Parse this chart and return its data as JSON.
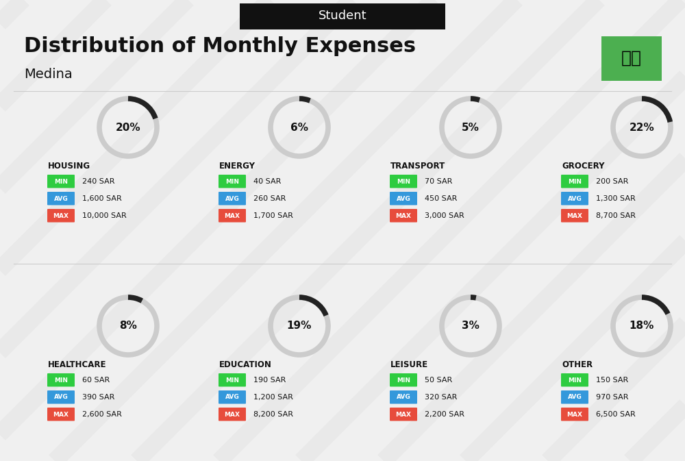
{
  "title": "Distribution of Monthly Expenses",
  "subtitle": "Student",
  "location": "Medina",
  "bg_color": "#f0f0f0",
  "title_color": "#111111",
  "categories": [
    {
      "name": "HOUSING",
      "pct": 20,
      "min_val": "240 SAR",
      "avg_val": "1,600 SAR",
      "max_val": "10,000 SAR",
      "col": 0,
      "row": 0
    },
    {
      "name": "ENERGY",
      "pct": 6,
      "min_val": "40 SAR",
      "avg_val": "260 SAR",
      "max_val": "1,700 SAR",
      "col": 1,
      "row": 0
    },
    {
      "name": "TRANSPORT",
      "pct": 5,
      "min_val": "70 SAR",
      "avg_val": "450 SAR",
      "max_val": "3,000 SAR",
      "col": 2,
      "row": 0
    },
    {
      "name": "GROCERY",
      "pct": 22,
      "min_val": "200 SAR",
      "avg_val": "1,300 SAR",
      "max_val": "8,700 SAR",
      "col": 3,
      "row": 0
    },
    {
      "name": "HEALTHCARE",
      "pct": 8,
      "min_val": "60 SAR",
      "avg_val": "390 SAR",
      "max_val": "2,600 SAR",
      "col": 0,
      "row": 1
    },
    {
      "name": "EDUCATION",
      "pct": 19,
      "min_val": "190 SAR",
      "avg_val": "1,200 SAR",
      "max_val": "8,200 SAR",
      "col": 1,
      "row": 1
    },
    {
      "name": "LEISURE",
      "pct": 3,
      "min_val": "50 SAR",
      "avg_val": "320 SAR",
      "max_val": "2,200 SAR",
      "col": 2,
      "row": 1
    },
    {
      "name": "OTHER",
      "pct": 18,
      "min_val": "150 SAR",
      "avg_val": "970 SAR",
      "max_val": "6,500 SAR",
      "col": 3,
      "row": 1
    }
  ],
  "color_min": "#2ecc40",
  "color_avg": "#3498db",
  "color_max": "#e74c3c",
  "label_color": "#ffffff",
  "arc_color_dark": "#222222",
  "arc_color_light": "#cccccc",
  "flag_bg": "#4caf50",
  "header_bg": "#111111",
  "header_text": "#ffffff"
}
